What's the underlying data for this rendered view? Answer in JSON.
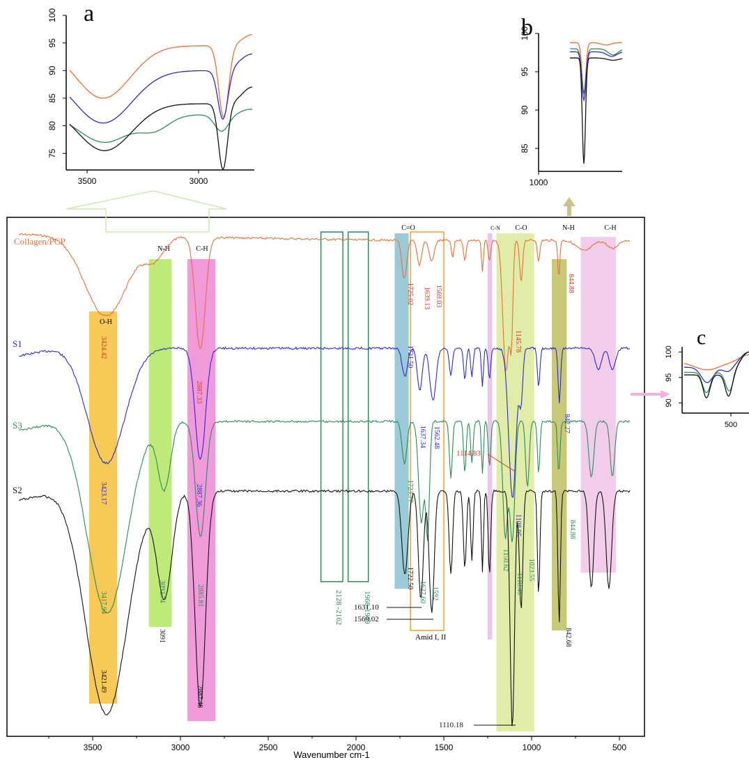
{
  "panels": {
    "a": "a",
    "b": "b",
    "c": "c"
  },
  "series_colors": {
    "Collagen/PCP": "#e8703a",
    "S1": "#2b2bcc",
    "S3": "#2e8a5a",
    "S2": "#111111"
  },
  "main": {
    "xlabel": "Wavenumber cm-1",
    "x_ticks": [
      "3500",
      "3000",
      "2500",
      "2000",
      "1500",
      "1000",
      "500"
    ],
    "series_labels": [
      "Collagen/PCP",
      "S1",
      "S3",
      "S2"
    ],
    "band_labels": {
      "oh": "O-H",
      "nh1": "N-H",
      "ch1": "C-H",
      "co_double": "C=O",
      "cn": "C-N",
      "co": "C-O",
      "nh2": "N-H",
      "ch2": "C-H"
    },
    "amid_label": "Amid I, II",
    "bands": [
      {
        "name": "O-H",
        "from": 3520,
        "to": 3360,
        "color": "#f6c445"
      },
      {
        "name": "N-H",
        "from": 3180,
        "to": 3050,
        "color": "#b8e86a"
      },
      {
        "name": "C-H",
        "from": 2960,
        "to": 2800,
        "color": "#ee8fd8"
      },
      {
        "name": "C=O",
        "from": 1780,
        "to": 1700,
        "color": "#8fc4d4"
      },
      {
        "name": "C-N",
        "from": 1250,
        "to": 1225,
        "color": "#e8c0e8"
      },
      {
        "name": "C-O",
        "from": 1200,
        "to": 985,
        "color": "#dfeaa0"
      },
      {
        "name": "N-H",
        "from": 885,
        "to": 800,
        "color": "#c2c26a"
      },
      {
        "name": "C-H",
        "from": 720,
        "to": 520,
        "color": "#f0c8e8"
      }
    ],
    "box_regions": [
      {
        "from": 2200,
        "to": 2075,
        "label": "2128 -2162"
      },
      {
        "from": 2045,
        "to": 1930,
        "label": "1968-1969"
      }
    ],
    "peak_labels": [
      {
        "text": "3424.42",
        "series": "Collagen/PCP"
      },
      {
        "text": "2887.33",
        "series": "Collagen/PCP"
      },
      {
        "text": "1725.02",
        "series": "Collagen/PCP"
      },
      {
        "text": "1639.13",
        "series": "Collagen/PCP"
      },
      {
        "text": "1569.03",
        "series": "Collagen/PCP"
      },
      {
        "text": "1145.78",
        "series": "Collagen/PCP"
      },
      {
        "text": "844.88",
        "series": "Collagen/PCP"
      },
      {
        "text": "1114.83",
        "series": "Collagen/PCP"
      },
      {
        "text": "3423.17",
        "series": "S1"
      },
      {
        "text": "2887.36",
        "series": "S1"
      },
      {
        "text": "1721.50",
        "series": "S1"
      },
      {
        "text": "1637.34",
        "series": "S1"
      },
      {
        "text": "1562.48",
        "series": "S1"
      },
      {
        "text": "1108.95",
        "series": "S1"
      },
      {
        "text": "842.27",
        "series": "S1"
      },
      {
        "text": "3417.94",
        "series": "S3"
      },
      {
        "text": "3092.74",
        "series": "S3"
      },
      {
        "text": "2885.81",
        "series": "S3"
      },
      {
        "text": "1723.77",
        "series": "S3"
      },
      {
        "text": "1627.60",
        "series": "S3"
      },
      {
        "text": "1592",
        "series": "S3"
      },
      {
        "text": "1150.62",
        "series": "S3"
      },
      {
        "text": "1110.46",
        "series": "S3"
      },
      {
        "text": "1023.55",
        "series": "S3"
      },
      {
        "text": "844.88",
        "series": "S3"
      },
      {
        "text": "3421.49",
        "series": "S2"
      },
      {
        "text": "3091",
        "series": "S2"
      },
      {
        "text": "2887.48",
        "series": "S2"
      },
      {
        "text": "1722.50",
        "series": "S2"
      },
      {
        "text": "1631.10",
        "series": "S2"
      },
      {
        "text": "1569.02",
        "series": "S2"
      },
      {
        "text": "1110.18",
        "series": "S2"
      },
      {
        "text": "842.68",
        "series": "S2"
      }
    ]
  },
  "inset_a": {
    "y_ticks": [
      "100",
      "95",
      "90",
      "85",
      "80",
      "75"
    ],
    "x_ticks": [
      "3500",
      "3000"
    ]
  },
  "inset_b": {
    "y_ticks": [
      "100",
      "95",
      "90",
      "85"
    ],
    "x_ticks": [
      "1000"
    ]
  },
  "inset_c": {
    "y_ticks": [
      "100",
      "95",
      "90"
    ],
    "x_ticks": [
      "500"
    ]
  },
  "chart_data": [
    {
      "type": "line",
      "xlabel": "Wavenumber cm-1",
      "ylabel": "",
      "xlim": [
        3950,
        400
      ],
      "x_reversed": true,
      "series": [
        {
          "name": "Collagen/PCP",
          "color": "#e8703a",
          "peaks_cm-1": [
            3424.42,
            2887.33,
            1725.02,
            1639.13,
            1569.03,
            1145.78,
            1114.83,
            844.88
          ]
        },
        {
          "name": "S1",
          "color": "#2b2bcc",
          "peaks_cm-1": [
            3423.17,
            2887.36,
            1721.5,
            1637.34,
            1562.48,
            1108.95,
            842.27
          ]
        },
        {
          "name": "S3",
          "color": "#2e8a5a",
          "peaks_cm-1": [
            3417.94,
            3092.74,
            2885.81,
            1723.77,
            1627.6,
            1592,
            1150.62,
            1110.46,
            1023.55,
            844.88
          ]
        },
        {
          "name": "S2",
          "color": "#111111",
          "peaks_cm-1": [
            3421.49,
            3091,
            2887.48,
            1722.5,
            1631.1,
            1569.02,
            1110.18,
            842.68
          ]
        }
      ]
    },
    {
      "type": "line",
      "title": "a",
      "ylim": [
        72,
        100
      ],
      "y_ticks": [
        75,
        80,
        85,
        90,
        95,
        100
      ],
      "x_ticks": [
        3500,
        3000
      ],
      "series": [
        {
          "name": "Collagen/PCP",
          "color": "#e8703a"
        },
        {
          "name": "S1",
          "color": "#2b2bcc"
        },
        {
          "name": "S3",
          "color": "#2e8a5a"
        },
        {
          "name": "S2",
          "color": "#111111"
        }
      ]
    },
    {
      "type": "line",
      "title": "b",
      "ylim": [
        82,
        100
      ],
      "y_ticks": [
        85,
        90,
        95,
        100
      ],
      "x_ticks": [
        1000
      ],
      "series": [
        {
          "name": "Collagen/PCP",
          "color": "#e8703a"
        },
        {
          "name": "S1",
          "color": "#2b2bcc"
        },
        {
          "name": "S3",
          "color": "#2e8a5a"
        },
        {
          "name": "S2",
          "color": "#111111"
        }
      ]
    },
    {
      "type": "line",
      "title": "c",
      "ylim": [
        88,
        101
      ],
      "y_ticks": [
        90,
        95,
        100
      ],
      "x_ticks": [
        500
      ],
      "series": [
        {
          "name": "Collagen/PCP",
          "color": "#e8703a"
        },
        {
          "name": "S1",
          "color": "#2b2bcc"
        },
        {
          "name": "S3",
          "color": "#2e8a5a"
        },
        {
          "name": "S2",
          "color": "#111111"
        }
      ]
    }
  ]
}
